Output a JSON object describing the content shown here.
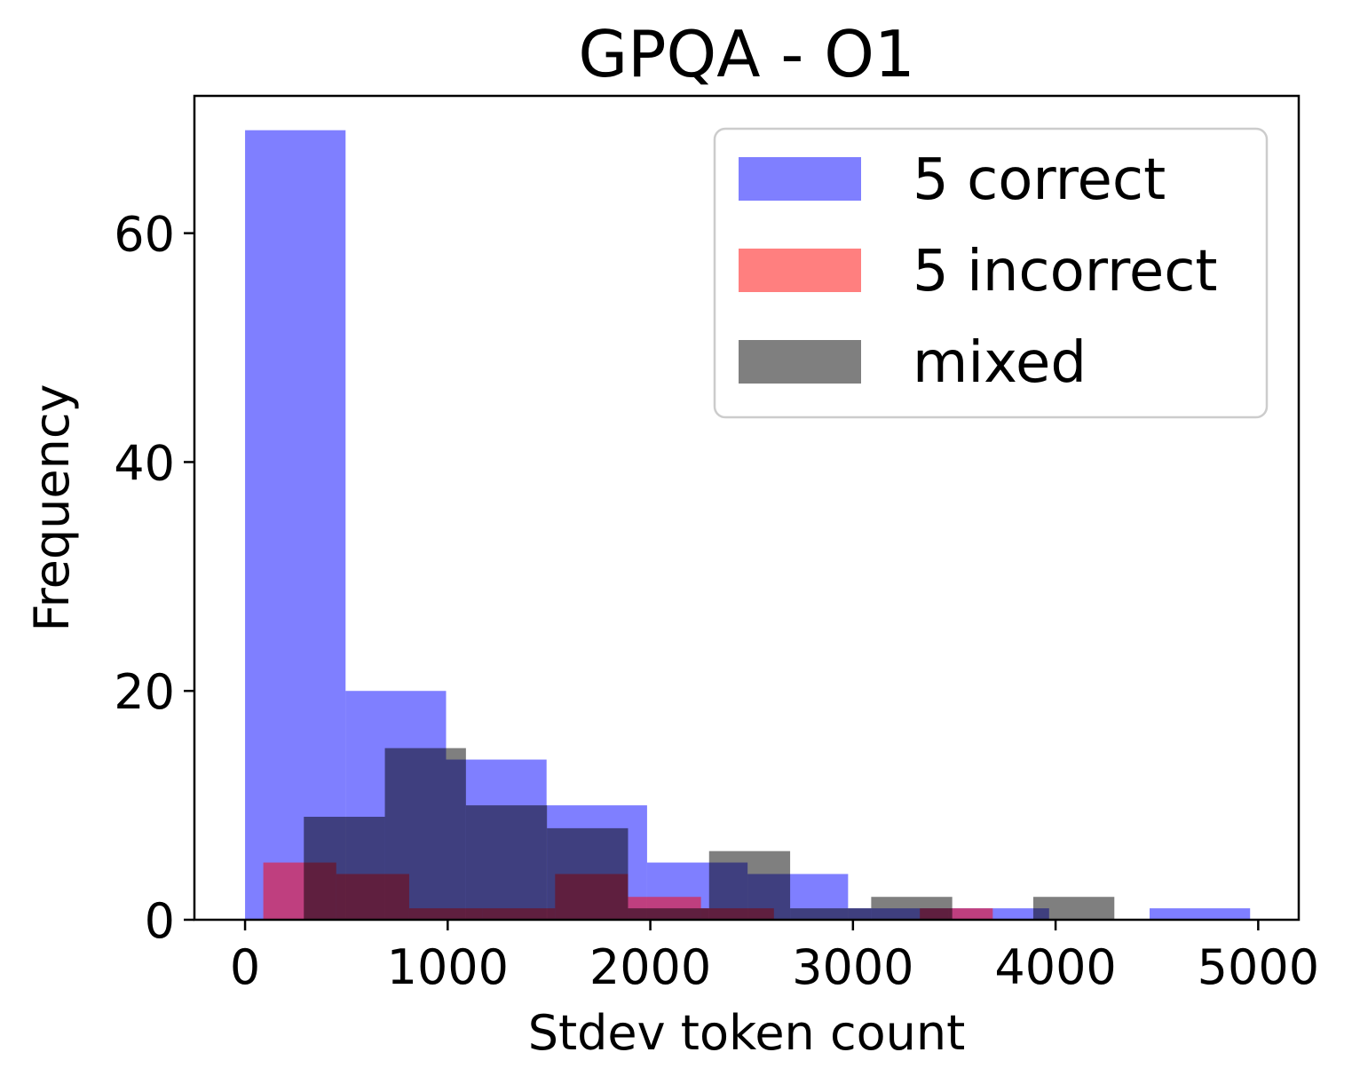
{
  "chart_data": {
    "type": "bar",
    "title": "GPQA - O1",
    "xlabel": "Stdev token count",
    "ylabel": "Frequency",
    "xlim": [
      -250,
      5200
    ],
    "ylim": [
      0,
      72
    ],
    "xticks": [
      0,
      1000,
      2000,
      3000,
      4000,
      5000
    ],
    "yticks": [
      0,
      20,
      40,
      60
    ],
    "grid": false,
    "legend_position": "top-right",
    "series": [
      {
        "name": "5 correct",
        "color": "#0000ff",
        "opacity": 0.5,
        "bin_edges": [
          0,
          496,
          992,
          1488,
          1984,
          2480,
          2976,
          3472,
          3968,
          4464,
          4960
        ],
        "counts": [
          69,
          20,
          14,
          10,
          5,
          4,
          1,
          1,
          0,
          1
        ]
      },
      {
        "name": "5 incorrect",
        "color": "#ff0000",
        "opacity": 0.5,
        "bin_edges": [
          90,
          450,
          810,
          1170,
          1530,
          1890,
          2250,
          2610,
          2970,
          3330,
          3690
        ],
        "counts": [
          5,
          4,
          1,
          1,
          4,
          2,
          1,
          0,
          0,
          1
        ]
      },
      {
        "name": "mixed",
        "color": "#000000",
        "opacity": 0.5,
        "bin_edges": [
          290,
          690,
          1090,
          1490,
          1890,
          2290,
          2690,
          3090,
          3490,
          3890,
          4290
        ],
        "counts": [
          9,
          15,
          10,
          8,
          1,
          6,
          1,
          2,
          0,
          2
        ]
      }
    ]
  }
}
